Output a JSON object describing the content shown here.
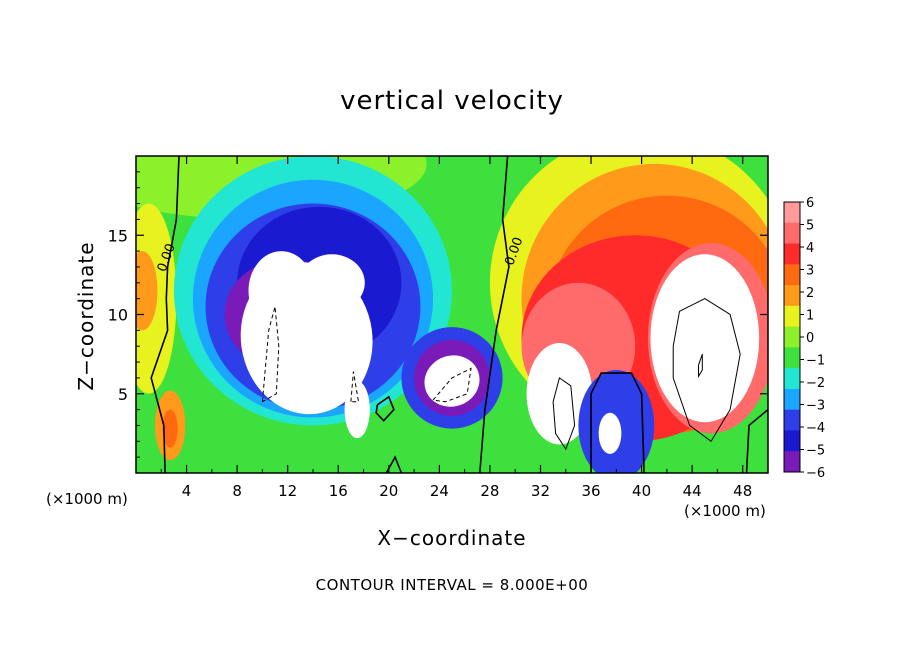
{
  "chart_data": {
    "type": "heatmap",
    "title": "vertical velocity",
    "xlabel": "X−coordinate",
    "ylabel": "Z−coordinate",
    "x_unit_label": "(×1000 m)",
    "xlim": [
      0,
      50
    ],
    "ylim": [
      0,
      20
    ],
    "x_ticks": [
      "4",
      "8",
      "12",
      "16",
      "20",
      "24",
      "28",
      "32",
      "36",
      "40",
      "44",
      "48"
    ],
    "x_tick_values": [
      4,
      8,
      12,
      16,
      20,
      24,
      28,
      32,
      36,
      40,
      44,
      48
    ],
    "y_ticks": [
      "5",
      "10",
      "15"
    ],
    "y_tick_values": [
      5,
      10,
      15
    ],
    "colorbar": {
      "min": -6,
      "max": 6,
      "labels": [
        "6",
        "5",
        "4",
        "3",
        "2",
        "1",
        "0",
        "−1",
        "−2",
        "−3",
        "−4",
        "−5",
        "−6"
      ],
      "label_values": [
        6,
        5,
        4,
        3,
        2,
        1,
        0,
        -1,
        -2,
        -3,
        -4,
        -5,
        -6
      ]
    },
    "contour_labels": [
      "0.00",
      "0.00"
    ],
    "contour_interval_text": "CONTOUR INTERVAL = 8.000E+00",
    "features": [
      {
        "sign": "negative",
        "x": 14,
        "z": 11,
        "peak": -6
      },
      {
        "sign": "negative",
        "x": 25,
        "z": 6,
        "peak": -6
      },
      {
        "sign": "negative",
        "x": 37.5,
        "z": 2.5,
        "peak": -6
      },
      {
        "sign": "positive",
        "x": 45,
        "z": 8.5,
        "peak": 6
      },
      {
        "sign": "positive",
        "x": 33.5,
        "z": 5,
        "peak": 6
      },
      {
        "sign": "positive",
        "x": 2.5,
        "z": 3,
        "peak": 3.5
      }
    ]
  }
}
